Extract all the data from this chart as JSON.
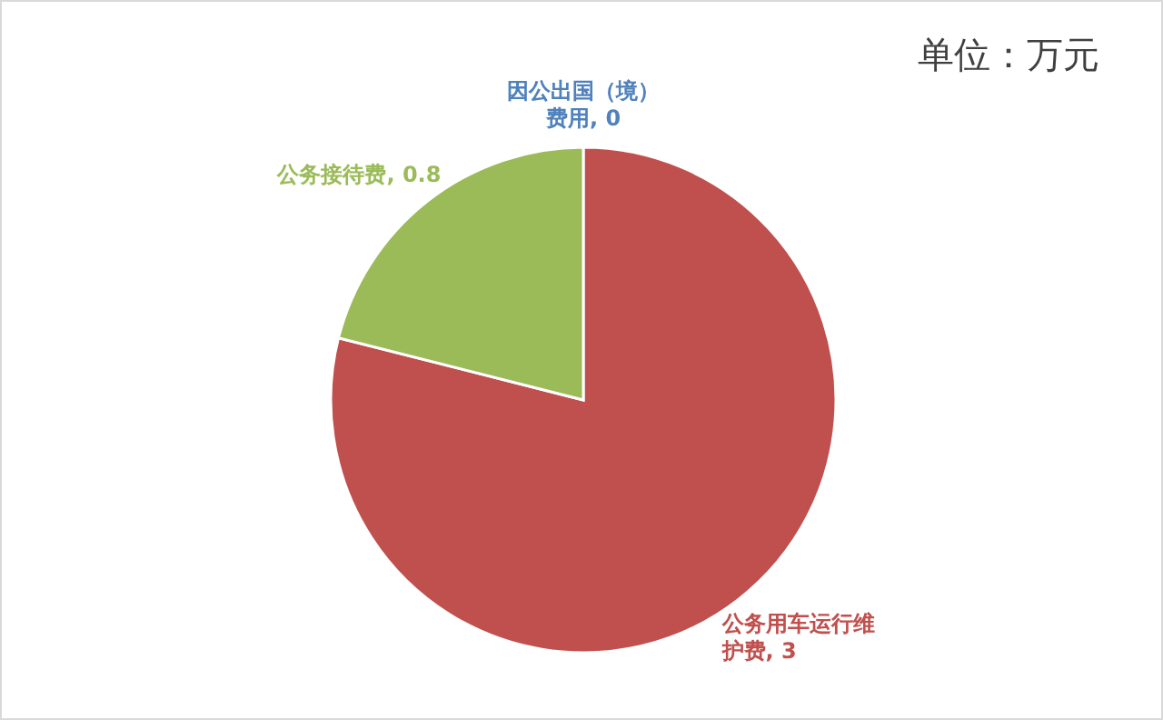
{
  "chart_data": {
    "type": "pie",
    "annotations": [
      "单位：万元"
    ],
    "categories": [
      "因公出国（境）费用",
      "公务用车运行维护费",
      "公务接待费"
    ],
    "values": [
      0,
      3,
      0.8
    ],
    "colors": [
      "#4f81bd",
      "#c0504d",
      "#9bbb59"
    ],
    "value_labels": [
      ", 0",
      ", 3",
      ", 0.8"
    ],
    "legend": false
  }
}
